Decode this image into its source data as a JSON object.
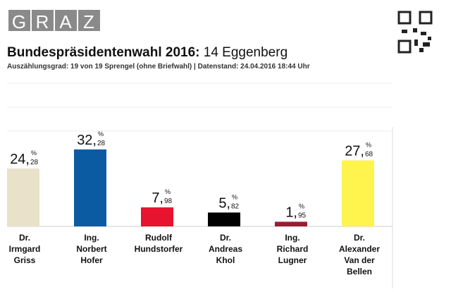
{
  "header": {
    "logo": [
      "G",
      "R",
      "A",
      "Z"
    ],
    "title": "Bundespräsidentenwahl 2016:",
    "district": "14 Eggenberg",
    "subtitle": "Auszählungsgrad: 19 von 19 Sprengel (ohne Briefwahl) | Datenstand: 24.04.2016 18:44 Uhr"
  },
  "chart_data": {
    "type": "bar",
    "categories": [
      [
        "Dr.",
        "Irmgard",
        "Griss"
      ],
      [
        "Ing.",
        "Norbert",
        "Hofer"
      ],
      [
        "Rudolf",
        "Hundstorfer"
      ],
      [
        "Dr.",
        "Andreas",
        "Khol"
      ],
      [
        "Ing.",
        "Richard",
        "Lugner"
      ],
      [
        "Dr.",
        "Alexander",
        "Van der",
        "Bellen"
      ]
    ],
    "values": [
      24.28,
      32.28,
      7.98,
      5.82,
      1.95,
      27.68
    ],
    "value_labels": [
      [
        "24,",
        "28"
      ],
      [
        "32,",
        "28"
      ],
      [
        "7,",
        "98"
      ],
      [
        "5,",
        "82"
      ],
      [
        "1,",
        "95"
      ],
      [
        "27,",
        "68"
      ]
    ],
    "unit": "%",
    "colors": [
      "#e9e1ca",
      "#0b5ba3",
      "#e8132f",
      "#000000",
      "#9a1c34",
      "#fff34d"
    ],
    "ylim": [
      0,
      63
    ],
    "yticks": [
      40,
      50,
      60
    ],
    "grid": true
  }
}
